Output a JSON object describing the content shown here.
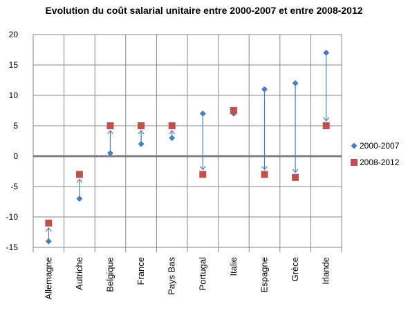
{
  "chart_data": {
    "type": "scatter",
    "title": "Evolution du coût salarial unitaire entre 2000-2007 et entre 2008-2012",
    "categories": [
      "Allemagne",
      "Autriche",
      "Belgique",
      "France",
      "Pays Bas",
      "Portugal",
      "Italie",
      "Espagne",
      "Grèce",
      "Irlande"
    ],
    "series": [
      {
        "name": "2000-2007",
        "marker": "diamond",
        "color": "#4a7ebb",
        "values": [
          -14,
          -7,
          0.5,
          2,
          3,
          7,
          7,
          11,
          12,
          17
        ]
      },
      {
        "name": "2008-2012",
        "marker": "square",
        "color": "#c0504d",
        "values": [
          -11,
          -3,
          5,
          5,
          5,
          -3,
          7.5,
          -3,
          -3.5,
          5
        ]
      }
    ],
    "arrows": {
      "from": "2000-2007",
      "to": "2008-2012",
      "color": "#4a7ebb"
    },
    "ylim": [
      -15,
      20
    ],
    "yticks": [
      -15,
      -10,
      -5,
      0,
      5,
      10,
      15,
      20
    ],
    "grid": true,
    "zero_line": true,
    "legend_position": "right",
    "xlabel": "",
    "ylabel": ""
  }
}
